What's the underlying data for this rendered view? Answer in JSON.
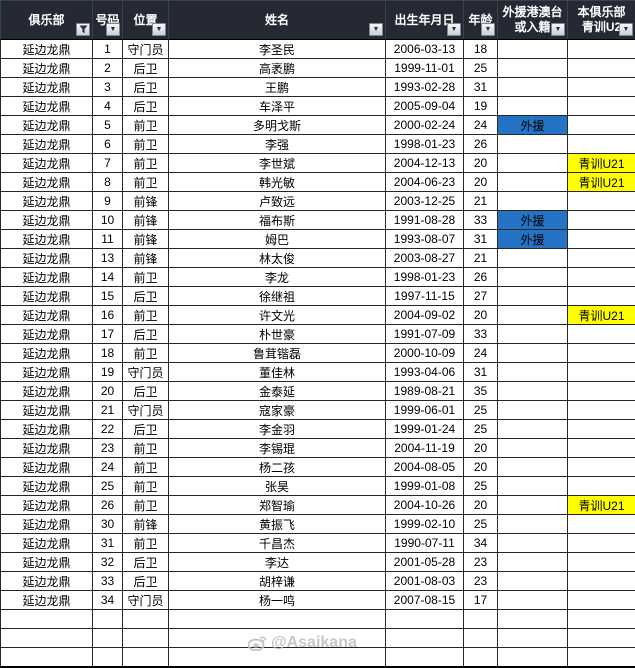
{
  "table": {
    "columns": [
      {
        "key": "club",
        "line1": "俱乐部",
        "line2": "",
        "filter": "funnel"
      },
      {
        "key": "no",
        "line1": "号码",
        "line2": "",
        "filter": "arrow"
      },
      {
        "key": "pos",
        "line1": "位置",
        "line2": "",
        "filter": "arrow"
      },
      {
        "key": "name",
        "line1": "姓名",
        "line2": "",
        "filter": "arrow"
      },
      {
        "key": "birth",
        "line1": "出生年月日",
        "line2": "",
        "filter": "arrow"
      },
      {
        "key": "age",
        "line1": "年龄",
        "line2": "",
        "filter": "arrow"
      },
      {
        "key": "foreign",
        "line1": "外援港澳台",
        "line2": "或入籍",
        "filter": "arrow"
      },
      {
        "key": "youth",
        "line1": "本俱乐部",
        "line2": "青训U2",
        "filter": "arrow"
      }
    ],
    "rows": [
      {
        "club": "延边龙鼎",
        "no": "1",
        "pos": "守门员",
        "name": "李圣民",
        "birth": "2006-03-13",
        "age": "18",
        "foreign": "",
        "youth": ""
      },
      {
        "club": "延边龙鼎",
        "no": "2",
        "pos": "后卫",
        "name": "高袤鹏",
        "birth": "1999-11-01",
        "age": "25",
        "foreign": "",
        "youth": ""
      },
      {
        "club": "延边龙鼎",
        "no": "3",
        "pos": "后卫",
        "name": "王鹏",
        "birth": "1993-02-28",
        "age": "31",
        "foreign": "",
        "youth": ""
      },
      {
        "club": "延边龙鼎",
        "no": "4",
        "pos": "后卫",
        "name": "车泽平",
        "birth": "2005-09-04",
        "age": "19",
        "foreign": "",
        "youth": ""
      },
      {
        "club": "延边龙鼎",
        "no": "5",
        "pos": "前卫",
        "name": "多明戈斯",
        "birth": "2000-02-24",
        "age": "24",
        "foreign": "外援",
        "youth": ""
      },
      {
        "club": "延边龙鼎",
        "no": "6",
        "pos": "前卫",
        "name": "李强",
        "birth": "1998-01-23",
        "age": "26",
        "foreign": "",
        "youth": ""
      },
      {
        "club": "延边龙鼎",
        "no": "7",
        "pos": "前卫",
        "name": "李世斌",
        "birth": "2004-12-13",
        "age": "20",
        "foreign": "",
        "youth": "青训U21"
      },
      {
        "club": "延边龙鼎",
        "no": "8",
        "pos": "前卫",
        "name": "韩光敏",
        "birth": "2004-06-23",
        "age": "20",
        "foreign": "",
        "youth": "青训U21"
      },
      {
        "club": "延边龙鼎",
        "no": "9",
        "pos": "前锋",
        "name": "卢致远",
        "birth": "2003-12-25",
        "age": "21",
        "foreign": "",
        "youth": ""
      },
      {
        "club": "延边龙鼎",
        "no": "10",
        "pos": "前锋",
        "name": "福布斯",
        "birth": "1991-08-28",
        "age": "33",
        "foreign": "外援",
        "youth": ""
      },
      {
        "club": "延边龙鼎",
        "no": "11",
        "pos": "前锋",
        "name": "姆巴",
        "birth": "1993-08-07",
        "age": "31",
        "foreign": "外援",
        "youth": ""
      },
      {
        "club": "延边龙鼎",
        "no": "13",
        "pos": "前锋",
        "name": "林太俊",
        "birth": "2003-08-27",
        "age": "21",
        "foreign": "",
        "youth": ""
      },
      {
        "club": "延边龙鼎",
        "no": "14",
        "pos": "前卫",
        "name": "李龙",
        "birth": "1998-01-23",
        "age": "26",
        "foreign": "",
        "youth": ""
      },
      {
        "club": "延边龙鼎",
        "no": "15",
        "pos": "后卫",
        "name": "徐继祖",
        "birth": "1997-11-15",
        "age": "27",
        "foreign": "",
        "youth": ""
      },
      {
        "club": "延边龙鼎",
        "no": "16",
        "pos": "前卫",
        "name": "许文光",
        "birth": "2004-09-02",
        "age": "20",
        "foreign": "",
        "youth": "青训U21"
      },
      {
        "club": "延边龙鼎",
        "no": "17",
        "pos": "后卫",
        "name": "朴世豪",
        "birth": "1991-07-09",
        "age": "33",
        "foreign": "",
        "youth": ""
      },
      {
        "club": "延边龙鼎",
        "no": "18",
        "pos": "前卫",
        "name": "鲁茸锴磊",
        "birth": "2000-10-09",
        "age": "24",
        "foreign": "",
        "youth": ""
      },
      {
        "club": "延边龙鼎",
        "no": "19",
        "pos": "守门员",
        "name": "董佳林",
        "birth": "1993-04-06",
        "age": "31",
        "foreign": "",
        "youth": ""
      },
      {
        "club": "延边龙鼎",
        "no": "20",
        "pos": "后卫",
        "name": "金泰延",
        "birth": "1989-08-21",
        "age": "35",
        "foreign": "",
        "youth": ""
      },
      {
        "club": "延边龙鼎",
        "no": "21",
        "pos": "守门员",
        "name": "寇家豪",
        "birth": "1999-06-01",
        "age": "25",
        "foreign": "",
        "youth": ""
      },
      {
        "club": "延边龙鼎",
        "no": "22",
        "pos": "后卫",
        "name": "李金羽",
        "birth": "1999-01-24",
        "age": "25",
        "foreign": "",
        "youth": ""
      },
      {
        "club": "延边龙鼎",
        "no": "23",
        "pos": "前卫",
        "name": "李锡琨",
        "birth": "2004-11-19",
        "age": "20",
        "foreign": "",
        "youth": ""
      },
      {
        "club": "延边龙鼎",
        "no": "24",
        "pos": "前卫",
        "name": "杨二孩",
        "birth": "2004-08-05",
        "age": "20",
        "foreign": "",
        "youth": ""
      },
      {
        "club": "延边龙鼎",
        "no": "25",
        "pos": "前卫",
        "name": "张昊",
        "birth": "1999-01-08",
        "age": "25",
        "foreign": "",
        "youth": ""
      },
      {
        "club": "延边龙鼎",
        "no": "26",
        "pos": "前卫",
        "name": "郑智瑜",
        "birth": "2004-10-26",
        "age": "20",
        "foreign": "",
        "youth": "青训U21"
      },
      {
        "club": "延边龙鼎",
        "no": "30",
        "pos": "前锋",
        "name": "黄振飞",
        "birth": "1999-02-10",
        "age": "25",
        "foreign": "",
        "youth": ""
      },
      {
        "club": "延边龙鼎",
        "no": "31",
        "pos": "前卫",
        "name": "千昌杰",
        "birth": "1990-07-11",
        "age": "34",
        "foreign": "",
        "youth": ""
      },
      {
        "club": "延边龙鼎",
        "no": "32",
        "pos": "后卫",
        "name": "李达",
        "birth": "2001-05-28",
        "age": "23",
        "foreign": "",
        "youth": ""
      },
      {
        "club": "延边龙鼎",
        "no": "33",
        "pos": "后卫",
        "name": "胡梓谦",
        "birth": "2001-08-03",
        "age": "23",
        "foreign": "",
        "youth": ""
      },
      {
        "club": "延边龙鼎",
        "no": "34",
        "pos": "守门员",
        "name": "杨一鸣",
        "birth": "2007-08-15",
        "age": "17",
        "foreign": "",
        "youth": ""
      }
    ],
    "empty_row_count": 3
  },
  "colors": {
    "header_bg": "#242933",
    "foreign_cell_bg": "#2473C5",
    "youth_cell_bg": "#FFFF00"
  },
  "watermark": {
    "handle": "@Asaikana"
  }
}
